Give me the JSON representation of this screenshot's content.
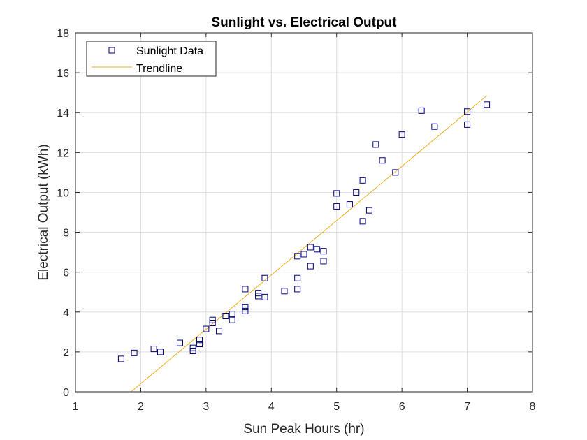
{
  "chart_data": {
    "type": "scatter",
    "title": "Sunlight vs. Electrical Output",
    "xlabel": "Sun Peak Hours (hr)",
    "ylabel": "Electrical Output (kWh)",
    "xlim": [
      1,
      8
    ],
    "ylim": [
      0,
      18
    ],
    "xticks": [
      "1",
      "2",
      "3",
      "4",
      "5",
      "6",
      "7",
      "8"
    ],
    "yticks": [
      "0",
      "2",
      "4",
      "6",
      "8",
      "10",
      "12",
      "14",
      "16",
      "18"
    ],
    "grid": true,
    "legend_location": "top-left",
    "series": [
      {
        "name": "Sunlight Data",
        "kind": "scatter",
        "marker": "square",
        "color": "#000080",
        "points": [
          [
            1.7,
            1.65
          ],
          [
            1.9,
            1.95
          ],
          [
            2.2,
            2.15
          ],
          [
            2.3,
            2.0
          ],
          [
            2.6,
            2.45
          ],
          [
            2.8,
            2.05
          ],
          [
            2.8,
            2.2
          ],
          [
            2.9,
            2.4
          ],
          [
            2.9,
            2.6
          ],
          [
            3.0,
            3.15
          ],
          [
            3.1,
            3.45
          ],
          [
            3.1,
            3.6
          ],
          [
            3.2,
            3.05
          ],
          [
            3.3,
            3.8
          ],
          [
            3.4,
            3.6
          ],
          [
            3.4,
            3.9
          ],
          [
            3.6,
            4.05
          ],
          [
            3.6,
            4.25
          ],
          [
            3.6,
            5.15
          ],
          [
            3.8,
            4.8
          ],
          [
            3.8,
            4.95
          ],
          [
            3.9,
            4.75
          ],
          [
            3.9,
            5.7
          ],
          [
            4.2,
            5.05
          ],
          [
            4.4,
            5.15
          ],
          [
            4.4,
            5.7
          ],
          [
            4.4,
            6.8
          ],
          [
            4.5,
            6.9
          ],
          [
            4.6,
            6.3
          ],
          [
            4.6,
            7.25
          ],
          [
            4.7,
            7.15
          ],
          [
            4.8,
            6.55
          ],
          [
            4.8,
            7.05
          ],
          [
            5.0,
            9.3
          ],
          [
            5.0,
            9.95
          ],
          [
            5.2,
            9.4
          ],
          [
            5.3,
            10.0
          ],
          [
            5.4,
            8.55
          ],
          [
            5.4,
            10.6
          ],
          [
            5.5,
            9.1
          ],
          [
            5.6,
            12.4
          ],
          [
            5.7,
            11.6
          ],
          [
            5.9,
            11.0
          ],
          [
            6.0,
            12.9
          ],
          [
            6.3,
            14.1
          ],
          [
            6.5,
            13.3
          ],
          [
            7.0,
            13.4
          ],
          [
            7.0,
            14.05
          ],
          [
            7.3,
            14.4
          ]
        ]
      },
      {
        "name": "Trendline",
        "kind": "line",
        "color": "#EDB120",
        "points": [
          [
            1.85,
            0.0
          ],
          [
            7.3,
            14.85
          ]
        ]
      }
    ]
  }
}
